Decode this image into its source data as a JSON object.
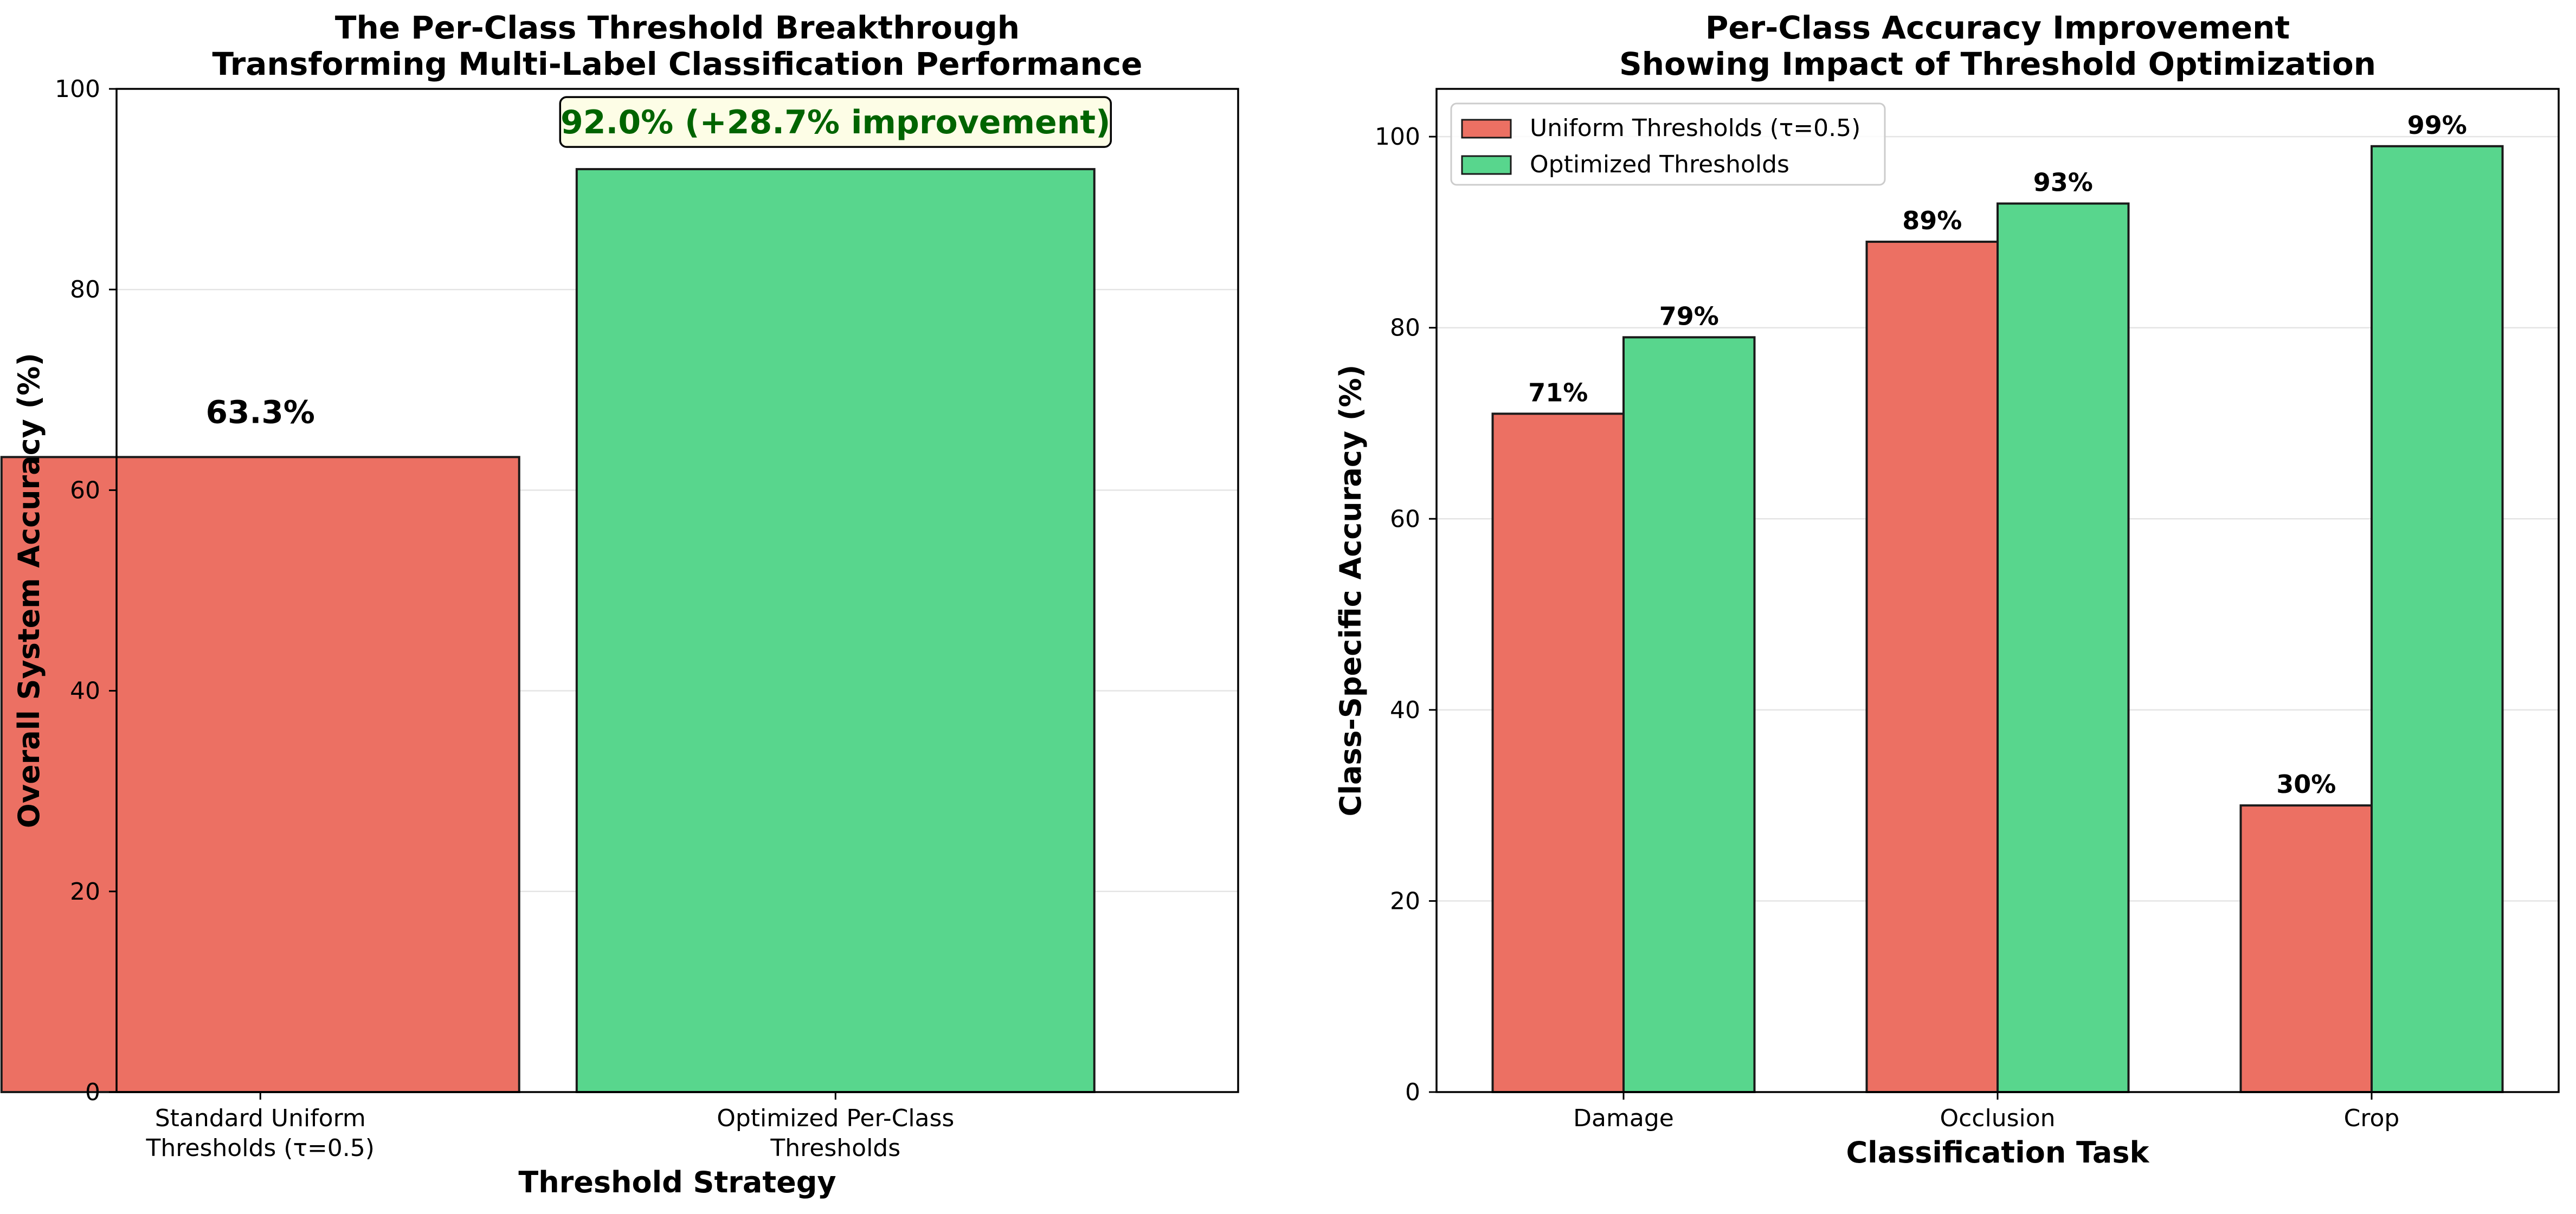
{
  "chart_data": [
    {
      "type": "bar",
      "title_line1": "The Per-Class Threshold Breakthrough",
      "title_line2": "Transforming Multi-Label Classification Performance",
      "xlabel": "Threshold Strategy",
      "ylabel": "Overall System Accuracy (%)",
      "ylim": [
        0,
        100
      ],
      "yticks": [
        0,
        20,
        40,
        60,
        80,
        100
      ],
      "categories": [
        [
          "Standard Uniform",
          "Thresholds (τ=0.5)"
        ],
        [
          "Optimized Per-Class",
          "Thresholds"
        ]
      ],
      "values": [
        63.3,
        92.0
      ],
      "colors": [
        "#ec7063",
        "#58d68d"
      ],
      "data_labels": [
        "63.3%",
        ""
      ],
      "annotation": "92.0% (+28.7% improvement)",
      "annotation_color": "#006400",
      "annotation_bg": "#fdfde6",
      "grid": "y"
    },
    {
      "type": "bar",
      "title_line1": "Per-Class Accuracy Improvement",
      "title_line2": "Showing Impact of Threshold Optimization",
      "xlabel": "Classification Task",
      "ylabel": "Class-Specific Accuracy (%)",
      "ylim": [
        0,
        105
      ],
      "yticks": [
        0,
        20,
        40,
        60,
        80,
        100
      ],
      "categories": [
        "Damage",
        "Occlusion",
        "Crop"
      ],
      "series": [
        {
          "name": "Uniform Thresholds (τ=0.5)",
          "values": [
            71,
            89,
            30
          ],
          "color": "#ec7063",
          "labels": [
            "71%",
            "89%",
            "30%"
          ]
        },
        {
          "name": "Optimized Thresholds",
          "values": [
            79,
            93,
            99
          ],
          "color": "#58d68d",
          "labels": [
            "79%",
            "93%",
            "99%"
          ]
        }
      ],
      "legend": "top-left",
      "grid": "y"
    }
  ]
}
